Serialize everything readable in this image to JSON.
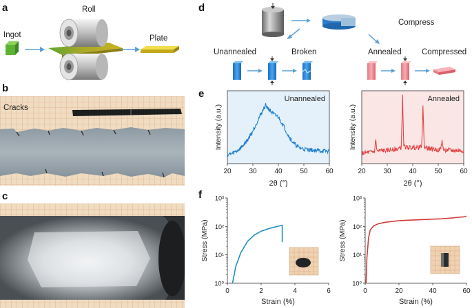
{
  "panels": {
    "a": "a",
    "b": "b",
    "c": "c",
    "d": "d",
    "e": "e",
    "f": "f"
  },
  "panel_a": {
    "ingot": "Ingot",
    "roll": "Roll",
    "plate": "Plate"
  },
  "panel_b": {
    "cracks": "Cracks"
  },
  "panel_d": {
    "compress": "Compress",
    "unannealed": "Unannealed",
    "broken": "Broken",
    "annealed": "Annealed",
    "compressed": "Compressed"
  },
  "colors": {
    "xrd_unannealed": "#1f7fd0",
    "xrd_annealed": "#e04646",
    "stress_unannealed": "#1f8fbf",
    "stress_annealed": "#d23a3a",
    "bg_unannealed": "#e4f1fb",
    "bg_annealed": "#fbe6e6",
    "arrow": "#5aa0d8"
  },
  "chart_data": [
    {
      "type": "line",
      "panel": "e-left",
      "title": "Unannealed",
      "xlabel": "2θ (°)",
      "ylabel": "Intensity (a.u.)",
      "xlim": [
        20,
        60
      ],
      "xticks": [
        20,
        30,
        40,
        50,
        60
      ],
      "series": [
        {
          "name": "Unannealed",
          "x": [
            20,
            22,
            24,
            26,
            28,
            30,
            32,
            34,
            35,
            36,
            38,
            40,
            42,
            44,
            46,
            48,
            50,
            52,
            55,
            58,
            60
          ],
          "y": [
            0.12,
            0.14,
            0.18,
            0.24,
            0.33,
            0.45,
            0.6,
            0.74,
            0.8,
            0.76,
            0.68,
            0.64,
            0.52,
            0.38,
            0.28,
            0.22,
            0.2,
            0.19,
            0.18,
            0.17,
            0.17
          ]
        }
      ]
    },
    {
      "type": "line",
      "panel": "e-right",
      "title": "Annealed",
      "xlabel": "2θ (°)",
      "ylabel": "Intensity (a.u.)",
      "xlim": [
        20,
        60
      ],
      "xticks": [
        20,
        30,
        40,
        50,
        60
      ],
      "series": [
        {
          "name": "Annealed",
          "x": [
            20,
            22,
            24,
            25,
            25.5,
            26,
            28,
            30,
            32,
            34,
            35.5,
            36,
            36.5,
            38,
            40,
            42,
            43.5,
            44,
            44.5,
            46,
            48,
            50,
            51,
            51.5,
            52,
            55,
            58,
            60
          ],
          "y": [
            0.14,
            0.15,
            0.16,
            0.17,
            0.32,
            0.17,
            0.18,
            0.18,
            0.19,
            0.2,
            0.22,
            0.92,
            0.24,
            0.22,
            0.22,
            0.22,
            0.23,
            0.8,
            0.23,
            0.21,
            0.2,
            0.19,
            0.2,
            0.32,
            0.19,
            0.18,
            0.18,
            0.18
          ]
        }
      ]
    },
    {
      "type": "line",
      "panel": "f-left",
      "xlabel": "Strain (%)",
      "ylabel": "Stress (MPa)",
      "xlim": [
        0,
        6
      ],
      "xticks": [
        0,
        2,
        4,
        6
      ],
      "yscale": "log",
      "ylim": [
        1,
        1000
      ],
      "yticks": [
        "10⁰",
        "10¹",
        "10²",
        "10³"
      ],
      "series": [
        {
          "name": "Unannealed",
          "x": [
            0.3,
            0.5,
            0.8,
            1.2,
            1.6,
            2.0,
            2.4,
            2.8,
            3.1,
            3.25,
            3.25
          ],
          "y": [
            1,
            4,
            12,
            30,
            50,
            68,
            82,
            95,
            105,
            110,
            28
          ]
        }
      ]
    },
    {
      "type": "line",
      "panel": "f-right",
      "xlabel": "Strain (%)",
      "ylabel": "Stress (MPa)",
      "xlim": [
        0,
        60
      ],
      "xticks": [
        0,
        20,
        40,
        60
      ],
      "yscale": "log",
      "ylim": [
        1,
        1000
      ],
      "yticks": [
        "10⁰",
        "10¹",
        "10²",
        "10³"
      ],
      "series": [
        {
          "name": "Annealed",
          "x": [
            0.5,
            1,
            2,
            3,
            5,
            8,
            12,
            16,
            20,
            25,
            30,
            35,
            40,
            45,
            50,
            52,
            55,
            58,
            60
          ],
          "y": [
            1,
            8,
            40,
            75,
            105,
            125,
            140,
            150,
            158,
            165,
            170,
            175,
            180,
            185,
            195,
            200,
            210,
            215,
            230
          ]
        }
      ]
    }
  ]
}
